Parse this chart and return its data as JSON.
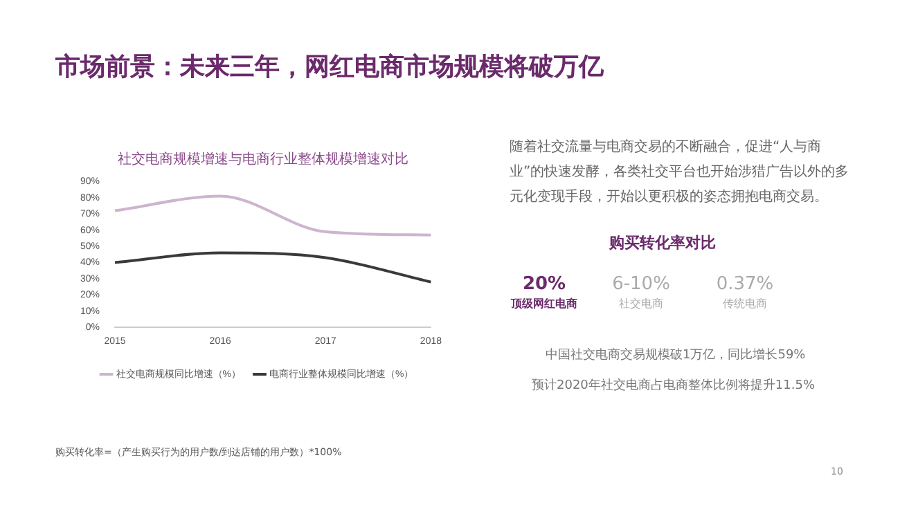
{
  "chart_data": {
    "type": "line",
    "title": "市场前景：未来三年，网红电商市场规模将破万亿",
    "subtitle": "社交电商规模增速与电商行业整体规模增速对比",
    "categories": [
      "2015",
      "2016",
      "2017",
      "2018"
    ],
    "series": [
      {
        "name": "社交电商规模同比增速（%）",
        "color": "#cdb5cd",
        "values": [
          72,
          81,
          59,
          57
        ]
      },
      {
        "name": "电商行业整体规模同比增速（%）",
        "color": "#3a3a3a",
        "values": [
          40,
          46,
          43,
          28
        ]
      }
    ],
    "ylim": [
      0,
      90
    ],
    "yticks": [
      {
        "value": 0,
        "label": "0%"
      },
      {
        "value": 10,
        "label": "10%"
      },
      {
        "value": 20,
        "label": "20%"
      },
      {
        "value": 30,
        "label": "30%"
      },
      {
        "value": 40,
        "label": "40%"
      },
      {
        "value": 50,
        "label": "50%"
      },
      {
        "value": 60,
        "label": "60%"
      },
      {
        "value": 70,
        "label": "70%"
      },
      {
        "value": 80,
        "label": "80%"
      },
      {
        "value": 90,
        "label": "90%"
      }
    ],
    "grid": false,
    "legend": "bottom",
    "marker": "none",
    "line_style": "solid",
    "annotations": [
      "随着社交流量与电商交易的不断融合，促进“人与商业”的快速发酵，各类社交平台也开始涉猎广告以外的多元化变现手段，开始以更积极的姿态拥抱电商交易。",
      "购买转化率对比",
      "20%",
      "顶级网红电商",
      "6-10%",
      "社交电商",
      "0.37%",
      "传统电商",
      "中国社交电商交易规模破1万亿，同比增长59%",
      "预计2020年社交电商占电商整体比例将提升11.5%",
      "购买转化率=（产生购买行为的用户数/到达店铺的用户数）*100%",
      "10"
    ]
  }
}
